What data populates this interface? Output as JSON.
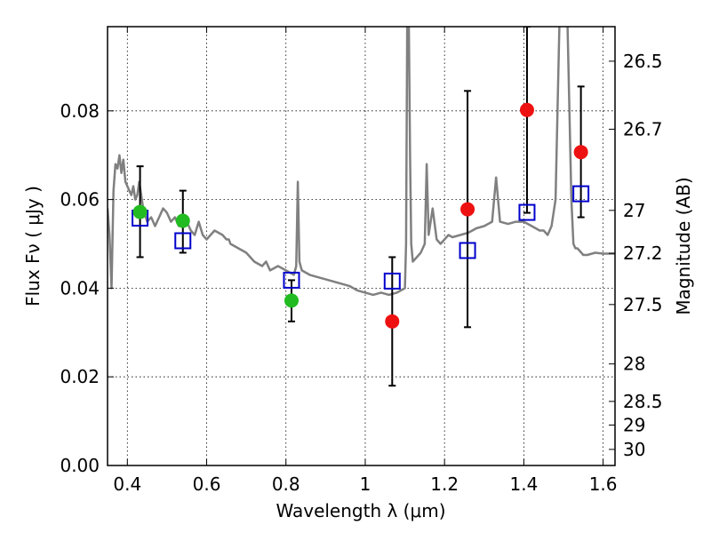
{
  "chart_data": {
    "type": "scatter",
    "xlabel": "Wavelength  λ (μm)",
    "ylabel": "Flux  Fν  ( μJy )",
    "y2label": "Magnitude (AB)",
    "xlim": [
      0.35,
      1.63
    ],
    "ylim": [
      0.0,
      0.099
    ],
    "x_ticks": [
      0.4,
      0.6,
      0.8,
      1.0,
      1.2,
      1.4,
      1.6
    ],
    "x_tick_labels": [
      "0.4",
      "0.6",
      "0.8",
      "1",
      "1.2",
      "1.4",
      "1.6"
    ],
    "y_ticks": [
      0.0,
      0.02,
      0.04,
      0.06,
      0.08
    ],
    "y_tick_labels": [
      "0.00",
      "0.02",
      "0.04",
      "0.06",
      "0.08"
    ],
    "mag_ticks": [
      26.5,
      26.7,
      27,
      27.2,
      27.5,
      28,
      28.5,
      29,
      30
    ],
    "mag_tick_labels": [
      "26.5",
      "26.7",
      "27",
      "27.2",
      "27.5",
      "28",
      "28.5",
      "29",
      "30"
    ],
    "grid": true,
    "colors": {
      "spectrum": "#808080",
      "optical_points": "#22bb22",
      "nir_points": "#ee1111",
      "model_squares": "#0000cc",
      "errorbars": "#000000"
    },
    "spectrum": {
      "x": [
        0.35,
        0.355,
        0.36,
        0.365,
        0.37,
        0.375,
        0.38,
        0.385,
        0.39,
        0.395,
        0.4,
        0.405,
        0.41,
        0.415,
        0.42,
        0.425,
        0.43,
        0.44,
        0.45,
        0.46,
        0.47,
        0.48,
        0.49,
        0.5,
        0.51,
        0.52,
        0.53,
        0.54,
        0.55,
        0.56,
        0.57,
        0.58,
        0.59,
        0.6,
        0.62,
        0.64,
        0.65,
        0.656,
        0.66,
        0.68,
        0.7,
        0.72,
        0.74,
        0.75,
        0.76,
        0.78,
        0.8,
        0.82,
        0.826,
        0.83,
        0.834,
        0.84,
        0.86,
        0.88,
        0.9,
        0.92,
        0.94,
        0.96,
        0.98,
        1.0,
        1.02,
        1.04,
        1.06,
        1.08,
        1.09,
        1.1,
        1.103,
        1.106,
        1.11,
        1.113,
        1.116,
        1.12,
        1.13,
        1.14,
        1.15,
        1.155,
        1.16,
        1.17,
        1.18,
        1.19,
        1.2,
        1.21,
        1.22,
        1.24,
        1.26,
        1.28,
        1.3,
        1.32,
        1.33,
        1.34,
        1.36,
        1.38,
        1.4,
        1.42,
        1.44,
        1.45,
        1.46,
        1.47,
        1.48,
        1.49,
        1.5,
        1.51,
        1.52,
        1.525,
        1.53,
        1.535,
        1.54,
        1.55,
        1.56,
        1.58,
        1.6,
        1.62,
        1.63
      ],
      "y": [
        0.058,
        0.052,
        0.04,
        0.062,
        0.068,
        0.067,
        0.07,
        0.066,
        0.069,
        0.064,
        0.063,
        0.062,
        0.061,
        0.063,
        0.06,
        0.061,
        0.064,
        0.058,
        0.055,
        0.056,
        0.054,
        0.056,
        0.058,
        0.057,
        0.055,
        0.056,
        0.054,
        0.056,
        0.055,
        0.053,
        0.052,
        0.055,
        0.052,
        0.051,
        0.053,
        0.052,
        0.051,
        0.051,
        0.05,
        0.049,
        0.048,
        0.046,
        0.045,
        0.046,
        0.044,
        0.045,
        0.044,
        0.043,
        0.045,
        0.064,
        0.046,
        0.044,
        0.043,
        0.0425,
        0.042,
        0.0415,
        0.041,
        0.0405,
        0.0395,
        0.039,
        0.0385,
        0.039,
        0.0385,
        0.039,
        0.0395,
        0.04,
        0.05,
        0.1,
        0.1,
        0.07,
        0.05,
        0.046,
        0.047,
        0.048,
        0.05,
        0.068,
        0.052,
        0.058,
        0.051,
        0.05,
        0.051,
        0.052,
        0.0515,
        0.052,
        0.0525,
        0.0535,
        0.054,
        0.055,
        0.065,
        0.055,
        0.0545,
        0.055,
        0.055,
        0.054,
        0.053,
        0.053,
        0.052,
        0.054,
        0.06,
        0.1,
        0.1,
        0.1,
        0.06,
        0.05,
        0.049,
        0.049,
        0.0485,
        0.0475,
        0.0475,
        0.048,
        0.0478,
        0.0478,
        0.0478
      ]
    },
    "series": [
      {
        "points": [
          {
            "x": 0.432,
            "y": 0.0572,
            "yerr_low": 0.047,
            "yerr_high": 0.0675
          },
          {
            "x": 0.54,
            "y": 0.0552,
            "yerr_low": 0.048,
            "yerr_high": 0.062
          },
          {
            "x": 0.814,
            "y": 0.0372,
            "yerr_low": 0.0325,
            "yerr_high": 0.0418
          }
        ]
      },
      {
        "points": [
          {
            "x": 1.068,
            "y": 0.0325,
            "yerr_low": 0.018,
            "yerr_high": 0.047
          },
          {
            "x": 1.258,
            "y": 0.0578,
            "yerr_low": 0.0312,
            "yerr_high": 0.0845
          },
          {
            "x": 1.408,
            "y": 0.0802,
            "yerr_low": 0.057,
            "yerr_high": 0.099
          },
          {
            "x": 1.544,
            "y": 0.0707,
            "yerr_low": 0.056,
            "yerr_high": 0.0855
          }
        ]
      },
      {
        "points": [
          {
            "x": 0.432,
            "y": 0.0558
          },
          {
            "x": 0.54,
            "y": 0.0507
          },
          {
            "x": 0.814,
            "y": 0.0418
          },
          {
            "x": 1.068,
            "y": 0.0416
          },
          {
            "x": 1.258,
            "y": 0.0485
          },
          {
            "x": 1.408,
            "y": 0.0571
          },
          {
            "x": 1.544,
            "y": 0.0613
          }
        ]
      }
    ]
  }
}
